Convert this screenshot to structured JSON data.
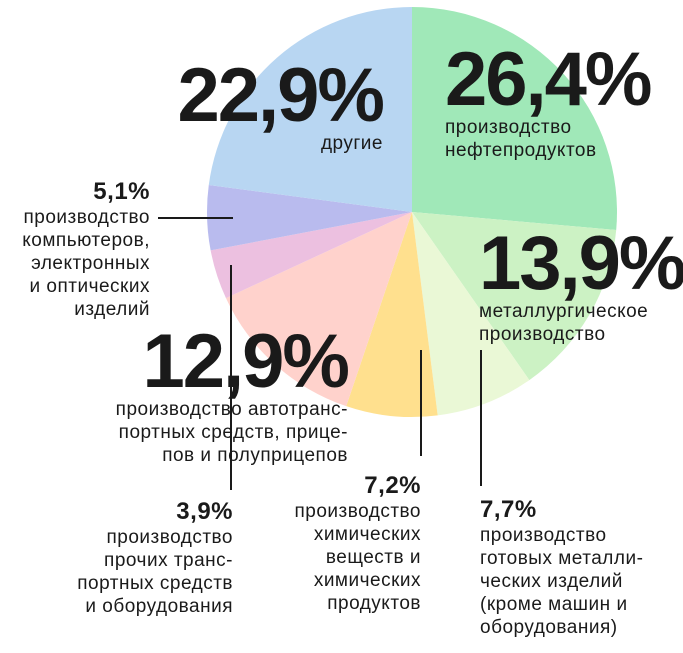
{
  "chart_data": {
    "type": "pie",
    "start": "top, clockwise",
    "slices": [
      {
        "value": 26.4,
        "label": "26,4%",
        "text": [
          "производство",
          "нефтепродуктов"
        ],
        "color": "#a0e8b8"
      },
      {
        "value": 13.9,
        "label": "13,9%",
        "text": [
          "металлургическое",
          "производство"
        ],
        "color": "#ccf2c4"
      },
      {
        "value": 7.7,
        "label": "7,7%",
        "text": [
          "производство",
          "готовых металли-",
          "ческих изделий",
          "(кроме машин и",
          "оборудования)"
        ],
        "color": "#eaf8d6"
      },
      {
        "value": 7.2,
        "label": "7,2%",
        "text": [
          "производство",
          "химических",
          "веществ и",
          "химических",
          "продуктов"
        ],
        "color": "#ffe08e"
      },
      {
        "value": 12.9,
        "label": "12,9%",
        "text": [
          "производство автотранс-",
          "портных средств, прице-",
          "пов и полуприцепов"
        ],
        "color": "#ffd2cc"
      },
      {
        "value": 3.9,
        "label": "3,9%",
        "text": [
          "производство",
          "прочих транс-",
          "портных средств",
          "и оборудования"
        ],
        "color": "#ecc0e0"
      },
      {
        "value": 5.1,
        "label": "5,1%",
        "text": [
          "производство",
          "компьютеров,",
          "электронных",
          "и оптических",
          "изделий"
        ],
        "color": "#b9bbee"
      },
      {
        "value": 22.9,
        "label": "22,9%",
        "text": [
          "другие"
        ],
        "color": "#b8d6f2"
      }
    ]
  }
}
